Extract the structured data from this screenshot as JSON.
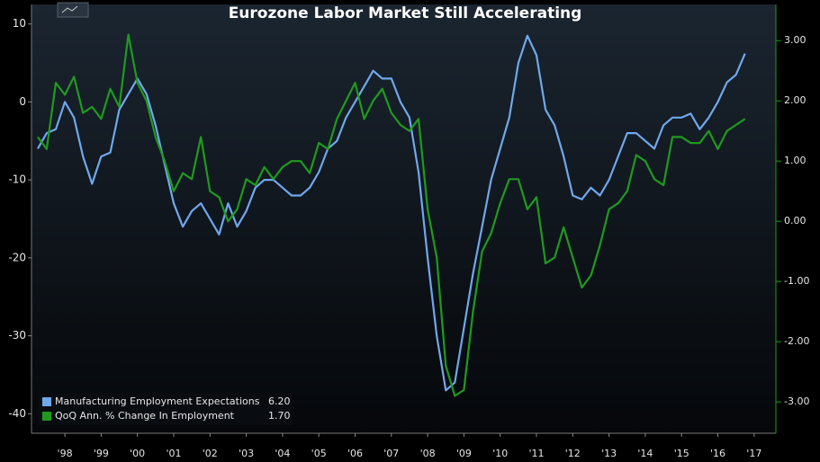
{
  "chart_data": {
    "type": "line",
    "title": "Eurozone Labor Market Still Accelerating",
    "x": [
      1997.75,
      1998,
      1998.25,
      1998.5,
      1998.75,
      1999,
      1999.25,
      1999.5,
      1999.75,
      2000,
      2000.25,
      2000.5,
      2000.75,
      2001,
      2001.25,
      2001.5,
      2001.75,
      2002,
      2002.25,
      2002.5,
      2002.75,
      2003,
      2003.25,
      2003.5,
      2003.75,
      2004,
      2004.25,
      2004.5,
      2004.75,
      2005,
      2005.25,
      2005.5,
      2005.75,
      2006,
      2006.25,
      2006.5,
      2006.75,
      2007,
      2007.25,
      2007.5,
      2007.75,
      2008,
      2008.25,
      2008.5,
      2008.75,
      2009,
      2009.25,
      2009.5,
      2009.75,
      2010,
      2010.25,
      2010.5,
      2010.75,
      2011,
      2011.25,
      2011.5,
      2011.75,
      2012,
      2012.25,
      2012.5,
      2012.75,
      2013,
      2013.25,
      2013.5,
      2013.75,
      2014,
      2014.25,
      2014.5,
      2014.75,
      2015,
      2015.25,
      2015.5,
      2015.75,
      2016,
      2016.25,
      2016.5,
      2016.75,
      2017,
      2017.25
    ],
    "series": [
      {
        "name": "Manufacturing Employment Expectations",
        "last_value_label": "6.20",
        "color": "#6fa8ec",
        "axis": "y",
        "values": [
          -6,
          -4,
          -3.5,
          0,
          -2,
          -7,
          -10.5,
          -7,
          -6.5,
          -1,
          1,
          3,
          1,
          -3,
          -8,
          -13,
          -16,
          -14,
          -13,
          -15,
          -17,
          -13,
          -16,
          -14,
          -11,
          -10,
          -10,
          -11,
          -12,
          -12,
          -11,
          -9,
          -6,
          -5,
          -2,
          0,
          2,
          4,
          3,
          3,
          0,
          -2,
          -9,
          -20,
          -30,
          -37,
          -36,
          -29,
          -22,
          -16,
          -10,
          -6,
          -2,
          5,
          8.5,
          6,
          -1,
          -3,
          -7,
          -12,
          -12.5,
          -11,
          -12,
          -10,
          -7,
          -4,
          -4,
          -5,
          -6,
          -3,
          -2,
          -2,
          -1.5,
          -3.5,
          -2,
          0,
          2.5,
          3.5,
          6.2
        ]
      },
      {
        "name": "QoQ Ann. % Change In Employment",
        "last_value_label": "1.70",
        "color": "#1f9a1f",
        "axis": "y2",
        "values": [
          1.4,
          1.2,
          2.3,
          2.1,
          2.4,
          1.8,
          1.9,
          1.7,
          2.2,
          1.9,
          3.1,
          2.3,
          2.0,
          1.4,
          1.0,
          0.5,
          0.8,
          0.7,
          1.4,
          0.5,
          0.4,
          0.0,
          0.2,
          0.7,
          0.6,
          0.9,
          0.7,
          0.9,
          1.0,
          1.0,
          0.8,
          1.3,
          1.2,
          1.7,
          2.0,
          2.3,
          1.7,
          2.0,
          2.2,
          1.8,
          1.6,
          1.5,
          1.7,
          0.2,
          -0.6,
          -2.4,
          -2.9,
          -2.8,
          -1.5,
          -0.5,
          -0.2,
          0.3,
          0.7,
          0.7,
          0.2,
          0.4,
          -0.7,
          -0.6,
          -0.1,
          -0.6,
          -1.1,
          -0.9,
          -0.4,
          0.2,
          0.3,
          0.5,
          1.1,
          1.0,
          0.7,
          0.6,
          1.4,
          1.4,
          1.3,
          1.3,
          1.5,
          1.2,
          1.5,
          1.6,
          1.7
        ]
      }
    ],
    "xlim": [
      1997.58,
      2018.1
    ],
    "xticks": [
      {
        "value": 1998.5,
        "label": "'98"
      },
      {
        "value": 1999.5,
        "label": "'99"
      },
      {
        "value": 2000.5,
        "label": "'00"
      },
      {
        "value": 2001.5,
        "label": "'01"
      },
      {
        "value": 2002.5,
        "label": "'02"
      },
      {
        "value": 2003.5,
        "label": "'03"
      },
      {
        "value": 2004.5,
        "label": "'04"
      },
      {
        "value": 2005.5,
        "label": "'05"
      },
      {
        "value": 2006.5,
        "label": "'06"
      },
      {
        "value": 2007.5,
        "label": "'07"
      },
      {
        "value": 2008.5,
        "label": "'08"
      },
      {
        "value": 2009.5,
        "label": "'09"
      },
      {
        "value": 2010.5,
        "label": "'10"
      },
      {
        "value": 2011.5,
        "label": "'11"
      },
      {
        "value": 2012.5,
        "label": "'12"
      },
      {
        "value": 2013.5,
        "label": "'13"
      },
      {
        "value": 2014.5,
        "label": "'14"
      },
      {
        "value": 2015.5,
        "label": "'15"
      },
      {
        "value": 2016.5,
        "label": "'16"
      },
      {
        "value": 2017.5,
        "label": "'17"
      }
    ],
    "ylim": [
      -42.5,
      12.5
    ],
    "yticks": [
      10,
      0,
      -10,
      -20,
      -30,
      -40
    ],
    "y2lim": [
      -3.52,
      3.6
    ],
    "y2ticks": [
      {
        "value": 3,
        "label": "3.00"
      },
      {
        "value": 2,
        "label": "2.00"
      },
      {
        "value": 1,
        "label": "1.00"
      },
      {
        "value": 0,
        "label": "0.00"
      },
      {
        "value": -1,
        "label": "-1.00"
      },
      {
        "value": -2,
        "label": "-2.00"
      },
      {
        "value": -3,
        "label": "-3.00"
      }
    ],
    "legend": "lower left"
  }
}
